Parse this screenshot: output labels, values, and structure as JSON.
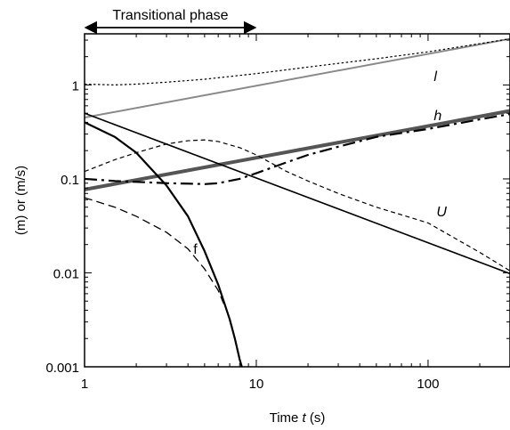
{
  "chart_data": {
    "type": "line",
    "x_scale": "log",
    "y_scale": "log",
    "xlim": [
      1,
      300
    ],
    "ylim": [
      0.001,
      3.5
    ],
    "xlabel_prefix": "Time ",
    "xlabel_var": "t",
    "xlabel_suffix": " (s)",
    "ylabel": "(m) or (m/s)",
    "x_ticks": [
      {
        "value": 1,
        "label": "1"
      },
      {
        "value": 10,
        "label": "10"
      },
      {
        "value": 100,
        "label": "100"
      }
    ],
    "y_ticks": [
      {
        "value": 0.001,
        "label": "0.001"
      },
      {
        "value": 0.01,
        "label": "0.01"
      },
      {
        "value": 0.1,
        "label": "0.1"
      },
      {
        "value": 1,
        "label": "1"
      }
    ],
    "annotation": {
      "text": "Transitional phase",
      "x_start": 1,
      "x_end": 10,
      "style": "double-arrow"
    },
    "series": [
      {
        "label": "l",
        "italic": true,
        "label_at": [
          108,
          1.1
        ],
        "style": "solid",
        "color": "#8a8a8a",
        "width": 2,
        "points": [
          [
            1,
            0.45
          ],
          [
            300,
            3.1
          ]
        ]
      },
      {
        "label": "",
        "style": "dotted",
        "color": "#000000",
        "width": 1.2,
        "points": [
          [
            1,
            1.02
          ],
          [
            1.5,
            1.0
          ],
          [
            2,
            1.02
          ],
          [
            3,
            1.07
          ],
          [
            5,
            1.15
          ],
          [
            10,
            1.32
          ],
          [
            20,
            1.55
          ],
          [
            50,
            1.9
          ],
          [
            100,
            2.25
          ],
          [
            200,
            2.75
          ],
          [
            300,
            3.1
          ]
        ]
      },
      {
        "label": "h",
        "italic": true,
        "label_at": [
          108,
          0.42
        ],
        "style": "solid",
        "color": "#555555",
        "width": 4,
        "points": [
          [
            1,
            0.077
          ],
          [
            300,
            0.53
          ]
        ]
      },
      {
        "label": "",
        "style": "dashdot",
        "color": "#000000",
        "width": 2.2,
        "points": [
          [
            1,
            0.1
          ],
          [
            1.5,
            0.095
          ],
          [
            2,
            0.093
          ],
          [
            3,
            0.09
          ],
          [
            4,
            0.089
          ],
          [
            5,
            0.088
          ],
          [
            6,
            0.09
          ],
          [
            8,
            0.1
          ],
          [
            10,
            0.115
          ],
          [
            15,
            0.15
          ],
          [
            20,
            0.18
          ],
          [
            30,
            0.22
          ],
          [
            50,
            0.28
          ],
          [
            100,
            0.34
          ],
          [
            200,
            0.43
          ],
          [
            300,
            0.49
          ]
        ]
      },
      {
        "label": "U",
        "italic": true,
        "label_at": [
          112,
          0.04
        ],
        "style": "solid",
        "color": "#000000",
        "width": 1.6,
        "points": [
          [
            1,
            0.5
          ],
          [
            300,
            0.0098
          ]
        ]
      },
      {
        "label": "",
        "style": "dashed",
        "color": "#000000",
        "width": 1.2,
        "points": [
          [
            1,
            0.12
          ],
          [
            1.5,
            0.16
          ],
          [
            2,
            0.19
          ],
          [
            3,
            0.235
          ],
          [
            4,
            0.255
          ],
          [
            5,
            0.26
          ],
          [
            6,
            0.25
          ],
          [
            8,
            0.215
          ],
          [
            10,
            0.18
          ],
          [
            15,
            0.12
          ],
          [
            20,
            0.095
          ],
          [
            30,
            0.07
          ],
          [
            50,
            0.05
          ],
          [
            100,
            0.034
          ],
          [
            200,
            0.0165
          ],
          [
            300,
            0.0105
          ]
        ]
      },
      {
        "label": "f",
        "italic": false,
        "label_at": [
          4.3,
          0.016
        ],
        "style": "solid",
        "color": "#000000",
        "width": 2.2,
        "points": [
          [
            1,
            0.4
          ],
          [
            1.5,
            0.28
          ],
          [
            2,
            0.19
          ],
          [
            3,
            0.085
          ],
          [
            4,
            0.04
          ],
          [
            5,
            0.017
          ],
          [
            6,
            0.0075
          ],
          [
            7,
            0.0032
          ],
          [
            7.5,
            0.002
          ],
          [
            8,
            0.0012
          ],
          [
            8.3,
            0.00095
          ]
        ]
      },
      {
        "label": "",
        "style": "longdash",
        "color": "#000000",
        "width": 1.3,
        "points": [
          [
            1,
            0.063
          ],
          [
            1.5,
            0.05
          ],
          [
            2,
            0.04
          ],
          [
            3,
            0.027
          ],
          [
            4,
            0.018
          ],
          [
            5,
            0.011
          ],
          [
            6,
            0.0065
          ],
          [
            7,
            0.0033
          ],
          [
            7.5,
            0.002
          ],
          [
            8,
            0.0012
          ],
          [
            8.3,
            0.00095
          ]
        ]
      }
    ]
  }
}
